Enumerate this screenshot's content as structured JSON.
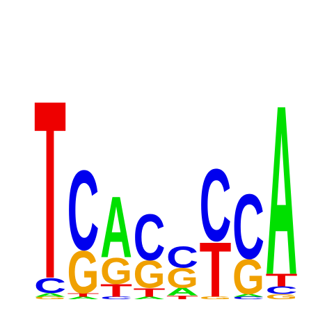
{
  "chart_data": {
    "type": "sequence-logo",
    "title": "",
    "xlabel": "",
    "ylabel": "",
    "axes_visible": false,
    "grid": false,
    "letter_colors": {
      "A": "#00e000",
      "C": "#0000ee",
      "G": "#f0a000",
      "T": "#ee0000"
    },
    "y_unit": "bits",
    "ylim": [
      0,
      2
    ],
    "positions": [
      {
        "position": 1,
        "stack": [
          {
            "base": "G",
            "height": 0.02
          },
          {
            "base": "A",
            "height": 0.03
          },
          {
            "base": "C",
            "height": 0.12
          },
          {
            "base": "T",
            "height": 1.43
          }
        ]
      },
      {
        "position": 2,
        "stack": [
          {
            "base": "A",
            "height": 0.02
          },
          {
            "base": "T",
            "height": 0.03
          },
          {
            "base": "G",
            "height": 0.34
          },
          {
            "base": "C",
            "height": 0.64
          }
        ]
      },
      {
        "position": 3,
        "stack": [
          {
            "base": "C",
            "height": 0.02
          },
          {
            "base": "T",
            "height": 0.1
          },
          {
            "base": "G",
            "height": 0.21
          },
          {
            "base": "A",
            "height": 0.49
          }
        ]
      },
      {
        "position": 4,
        "stack": [
          {
            "base": "A",
            "height": 0.02
          },
          {
            "base": "T",
            "height": 0.07
          },
          {
            "base": "G",
            "height": 0.22
          },
          {
            "base": "C",
            "height": 0.37
          }
        ]
      },
      {
        "position": 5,
        "stack": [
          {
            "base": "T",
            "height": 0.03
          },
          {
            "base": "A",
            "height": 0.06
          },
          {
            "base": "G",
            "height": 0.16
          },
          {
            "base": "C",
            "height": 0.17
          }
        ]
      },
      {
        "position": 6,
        "stack": [
          {
            "base": "G",
            "height": 0.02
          },
          {
            "base": "T",
            "height": 0.44
          },
          {
            "base": "C",
            "height": 0.58
          }
        ]
      },
      {
        "position": 7,
        "stack": [
          {
            "base": "C",
            "height": 0.02
          },
          {
            "base": "A",
            "height": 0.02
          },
          {
            "base": "G",
            "height": 0.28
          },
          {
            "base": "C",
            "height": 0.52
          }
        ]
      },
      {
        "position": 8,
        "stack": [
          {
            "base": "G",
            "height": 0.04
          },
          {
            "base": "C",
            "height": 0.06
          },
          {
            "base": "T",
            "height": 0.1
          },
          {
            "base": "A",
            "height": 1.36
          }
        ]
      }
    ]
  }
}
